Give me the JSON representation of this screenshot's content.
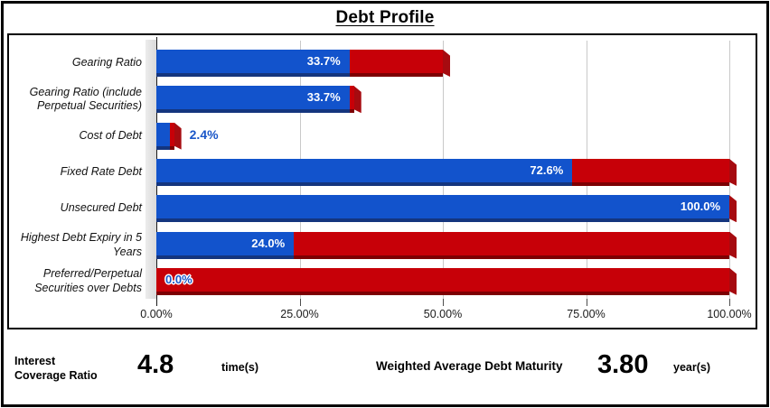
{
  "title": "Debt Profile",
  "chart_data": {
    "type": "bar",
    "orientation": "horizontal",
    "title": "Debt Profile",
    "xlim": [
      0,
      100
    ],
    "grid": true,
    "x_ticks": [
      {
        "label": "0.00%",
        "value": 0
      },
      {
        "label": "25.00%",
        "value": 25
      },
      {
        "label": "50.00%",
        "value": 50
      },
      {
        "label": "75.00%",
        "value": 75
      },
      {
        "label": "100.00%",
        "value": 100
      }
    ],
    "categories": [
      "Gearing Ratio",
      "Gearing Ratio (include Perpetual Securities)",
      "Cost of Debt",
      "Fixed Rate Debt",
      "Unsecured Debt",
      "Highest Debt Expiry in 5 Years",
      "Preferred/Perpetual Securities over Debts"
    ],
    "series": [
      {
        "name": "value",
        "color": "#1253cc",
        "values": [
          33.7,
          33.7,
          2.4,
          72.6,
          100.0,
          24.0,
          0.0
        ]
      },
      {
        "name": "remainder",
        "color": "#c70008",
        "values": [
          16.3,
          0.8,
          0.7,
          27.4,
          0.0,
          76.0,
          100.0
        ]
      }
    ],
    "data_labels": [
      {
        "text": "33.7%",
        "style": "inside"
      },
      {
        "text": "33.7%",
        "style": "inside"
      },
      {
        "text": "2.4%",
        "style": "outside"
      },
      {
        "text": "72.6%",
        "style": "inside"
      },
      {
        "text": "100.0%",
        "style": "inside"
      },
      {
        "text": "24.0%",
        "style": "inside"
      },
      {
        "text": "0.0%",
        "style": "outlined"
      }
    ]
  },
  "stats": {
    "interest_coverage": {
      "label": "Interest Coverage Ratio",
      "value": "4.8",
      "unit": "time(s)"
    },
    "debt_maturity": {
      "label": "Weighted Average Debt Maturity",
      "value": "3.80",
      "unit": "year(s)"
    }
  },
  "colors": {
    "bar_blue": "#1253cc",
    "bar_blue_dark": "#14357e",
    "bar_red": "#c70008",
    "bar_red_dark": "#7d0003",
    "end_cap_red": "#a60b10",
    "gridline": "#c9c9c9",
    "wall_gray": "#d9d9d9",
    "label_blue": "#1a56c8"
  }
}
